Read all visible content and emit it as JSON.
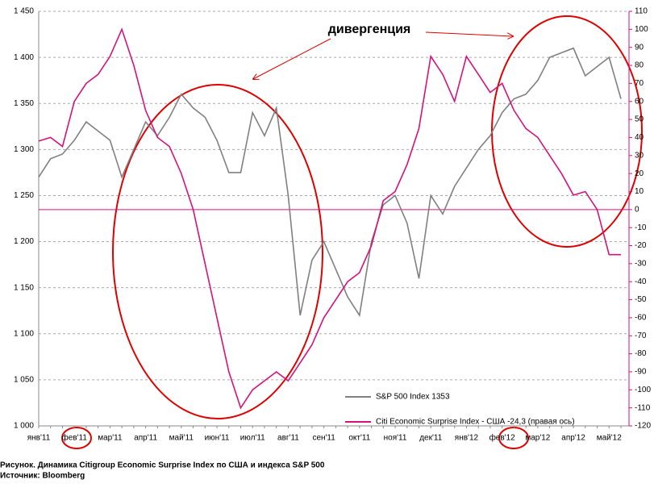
{
  "chart_data": {
    "type": "line",
    "annotation": "дивергенция",
    "categories": [
      "янв'11",
      null,
      null,
      "фев'11",
      null,
      null,
      "мар'11",
      null,
      null,
      "апр'11",
      null,
      null,
      "май'11",
      null,
      null,
      "июн'11",
      null,
      null,
      "июл'11",
      null,
      null,
      "авг'11",
      null,
      null,
      "сен'11",
      null,
      null,
      "окт'11",
      null,
      null,
      "ноя'11",
      null,
      null,
      "дек'11",
      null,
      null,
      "янв'12",
      null,
      null,
      "фев'12",
      null,
      null,
      "мар'12",
      null,
      null,
      "апр'12",
      null,
      null,
      "май'12",
      null
    ],
    "series": [
      {
        "name": "S&P 500 Index 1353",
        "color": "#808080",
        "axis": "y",
        "values": [
          1270,
          1290,
          1295,
          1310,
          1330,
          1320,
          1310,
          1270,
          1300,
          1330,
          1315,
          1335,
          1360,
          1345,
          1335,
          1310,
          1275,
          1275,
          1340,
          1315,
          1345,
          1250,
          1120,
          1180,
          1200,
          1170,
          1140,
          1120,
          1200,
          1240,
          1250,
          1220,
          1160,
          1250,
          1230,
          1260,
          1280,
          1300,
          1315,
          1340,
          1355,
          1360,
          1375,
          1400,
          1405,
          1410,
          1380,
          1390,
          1400,
          1355
        ]
      },
      {
        "name": "Citi Economic Surprise Index - США -24,3  (правая  ось)",
        "color": "#d6127a",
        "axis": "y2",
        "values": [
          38,
          40,
          35,
          60,
          70,
          75,
          85,
          100,
          80,
          55,
          40,
          35,
          20,
          0,
          -30,
          -60,
          -90,
          -110,
          -100,
          -95,
          -90,
          -95,
          -85,
          -75,
          -60,
          -50,
          -40,
          -35,
          -20,
          5,
          10,
          25,
          45,
          85,
          75,
          60,
          85,
          75,
          65,
          70,
          55,
          45,
          40,
          30,
          20,
          8,
          10,
          0,
          -25,
          -25
        ]
      }
    ],
    "ylim": [
      1000,
      1450
    ],
    "yticks": [
      {
        "value": 1000,
        "label": "1 000"
      },
      {
        "value": 1050,
        "label": "1 050"
      },
      {
        "value": 1100,
        "label": "1 100"
      },
      {
        "value": 1150,
        "label": "1 150"
      },
      {
        "value": 1200,
        "label": "1 200"
      },
      {
        "value": 1250,
        "label": "1 250"
      },
      {
        "value": 1300,
        "label": "1 300"
      },
      {
        "value": 1350,
        "label": "1 350"
      },
      {
        "value": 1400,
        "label": "1 400"
      },
      {
        "value": 1450,
        "label": "1 450"
      }
    ],
    "y2lim": [
      -120,
      110
    ],
    "y2ticks": [
      -120,
      -110,
      -100,
      -90,
      -80,
      -70,
      -60,
      -50,
      -40,
      -30,
      -20,
      -10,
      0,
      10,
      20,
      30,
      40,
      50,
      60,
      70,
      80,
      90,
      100,
      110
    ],
    "grid": true
  },
  "caption": {
    "title": "Рисунок. Динамика  Citigroup  Economic  Surprise  Index  по  США  и индекса  S&P  500",
    "source": "Источник: Bloomberg"
  }
}
